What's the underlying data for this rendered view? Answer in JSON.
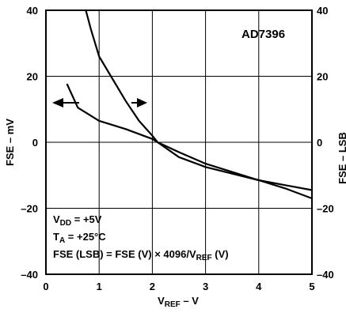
{
  "chart_data": {
    "type": "line",
    "annotation": "AD7396",
    "x": {
      "label_main": "V",
      "label_sub": "REF",
      "label_tail": " – V",
      "range": [
        0,
        5
      ],
      "ticks": [
        0,
        1,
        2,
        3,
        4,
        5
      ],
      "tick_labels": [
        "0",
        "1",
        "2",
        "3",
        "4",
        "5"
      ]
    },
    "y_left": {
      "label": "FSE – mV",
      "range": [
        -40,
        40
      ],
      "ticks": [
        -40,
        -20,
        0,
        20,
        40
      ],
      "tick_labels": [
        "–40",
        "–20",
        "0",
        "20",
        "40"
      ]
    },
    "y_right": {
      "label": "FSE – LSB",
      "range": [
        -40,
        40
      ],
      "ticks": [
        -40,
        -20,
        0,
        20,
        40
      ],
      "tick_labels": [
        "–40",
        "–20",
        "0",
        "20",
        "40"
      ]
    },
    "grid": true,
    "conditions": {
      "vdd_main": "V",
      "vdd_sub": "DD",
      "vdd_value": " = +5V",
      "ta_main": "T",
      "ta_sub": "A",
      "ta_value": " = +25°C",
      "fse_formula_main": "FSE (LSB) = FSE (V) × 4096/V",
      "fse_formula_sub": "REF",
      "fse_formula_tail": " (V)"
    },
    "series": [
      {
        "axis": "left",
        "x": [
          0.4,
          0.6,
          1.0,
          1.5,
          2.0,
          2.1,
          2.5,
          3.0,
          3.5,
          4.0,
          4.5,
          5.0
        ],
        "y": [
          17.5,
          10.5,
          6.5,
          4.0,
          1.0,
          0.0,
          -3.0,
          -6.5,
          -9.0,
          -11.5,
          -13.0,
          -14.5
        ]
      },
      {
        "axis": "right",
        "x": [
          0.75,
          0.85,
          1.0,
          1.5,
          1.75,
          2.0,
          2.1,
          2.5,
          3.0,
          3.5,
          4.0,
          4.5,
          5.0
        ],
        "y": [
          40.0,
          34.0,
          26.0,
          12.5,
          6.5,
          2.0,
          0.0,
          -4.5,
          -7.5,
          -9.5,
          -11.5,
          -14.0,
          -17.0
        ]
      }
    ]
  }
}
